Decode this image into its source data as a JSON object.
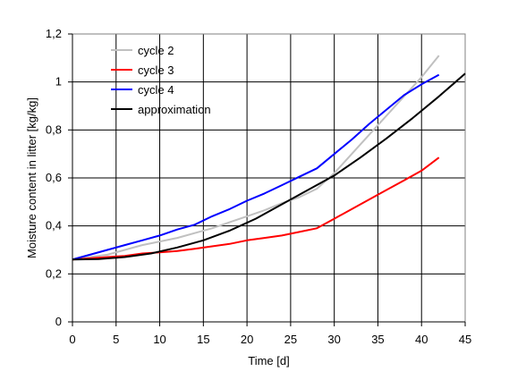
{
  "chart_data": {
    "type": "line",
    "title": "",
    "xlabel": "Time [d]",
    "ylabel": "Moisture content in litter [kg/kg]",
    "xlim": [
      0,
      45
    ],
    "ylim": [
      0,
      1.2
    ],
    "xticks": [
      0,
      5,
      10,
      15,
      20,
      25,
      30,
      35,
      40,
      45
    ],
    "yticks": [
      0,
      0.2,
      0.4,
      0.6,
      0.8,
      1.0,
      1.2
    ],
    "xtick_labels": [
      "0",
      "5",
      "10",
      "15",
      "20",
      "25",
      "30",
      "35",
      "40",
      "45"
    ],
    "ytick_labels": [
      "0",
      "0,2",
      "0,4",
      "0,6",
      "0,8",
      "1",
      "1,2"
    ],
    "grid": true,
    "legend_position": "top-left",
    "series": [
      {
        "name": "cycle 2",
        "color": "#c0c0c0",
        "x": [
          0,
          2,
          4,
          6,
          8,
          10,
          12,
          14,
          16,
          18,
          20,
          22,
          24,
          26,
          28,
          30,
          32,
          34,
          36,
          38,
          40,
          42
        ],
        "y": [
          0.26,
          0.27,
          0.28,
          0.3,
          0.32,
          0.335,
          0.35,
          0.37,
          0.39,
          0.415,
          0.44,
          0.465,
          0.495,
          0.52,
          0.555,
          0.62,
          0.7,
          0.78,
          0.86,
          0.94,
          1.02,
          1.11
        ]
      },
      {
        "name": "cycle 3",
        "color": "#ff0000",
        "x": [
          0,
          2,
          4,
          6,
          8,
          10,
          12,
          14,
          16,
          18,
          20,
          22,
          24,
          26,
          28,
          30,
          32,
          34,
          36,
          38,
          40,
          42
        ],
        "y": [
          0.26,
          0.265,
          0.27,
          0.275,
          0.285,
          0.29,
          0.295,
          0.305,
          0.315,
          0.325,
          0.34,
          0.35,
          0.36,
          0.375,
          0.39,
          0.43,
          0.47,
          0.51,
          0.55,
          0.59,
          0.63,
          0.685
        ]
      },
      {
        "name": "cycle 4",
        "color": "#0000ff",
        "x": [
          0,
          2,
          4,
          6,
          8,
          10,
          12,
          14,
          16,
          18,
          20,
          22,
          24,
          26,
          28,
          30,
          32,
          34,
          36,
          38,
          40,
          42
        ],
        "y": [
          0.26,
          0.28,
          0.3,
          0.32,
          0.34,
          0.36,
          0.385,
          0.405,
          0.44,
          0.47,
          0.505,
          0.535,
          0.57,
          0.605,
          0.64,
          0.7,
          0.76,
          0.825,
          0.885,
          0.945,
          0.99,
          1.03
        ]
      },
      {
        "name": "approximation",
        "color": "#000000",
        "x": [
          0,
          3,
          6,
          9,
          12,
          15,
          18,
          21,
          24,
          27,
          30,
          33,
          36,
          39,
          42,
          45
        ],
        "y": [
          0.26,
          0.262,
          0.27,
          0.285,
          0.31,
          0.34,
          0.38,
          0.43,
          0.49,
          0.55,
          0.61,
          0.685,
          0.765,
          0.85,
          0.94,
          1.035
        ]
      }
    ]
  }
}
